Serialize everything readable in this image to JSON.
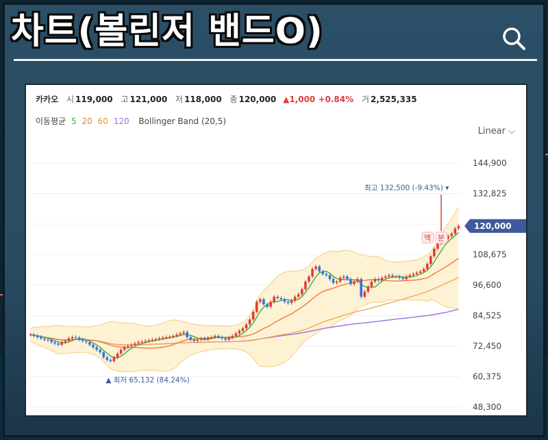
{
  "header": {
    "title": "차트(볼린저 밴드O)"
  },
  "search": {
    "icon": "search-icon"
  },
  "stock": {
    "name": "카카오",
    "open_label": "시",
    "open": "119,000",
    "high_label": "고",
    "high": "121,000",
    "low_label": "저",
    "low": "118,000",
    "close_label": "종",
    "close": "120,000",
    "change": "1,000",
    "change_pct": "+0.84%",
    "volume_label": "거",
    "volume": "2,525,335"
  },
  "indicators": {
    "ma_label": "이동평균",
    "ma_periods": [
      "5",
      "20",
      "60",
      "120"
    ],
    "bollinger": "Bollinger Band (20,5)"
  },
  "scale_toggle": "Linear",
  "colors": {
    "up": "#e03b3b",
    "down": "#3a6fd8",
    "ma5": "#3cb043",
    "ma20": "#f07a3c",
    "ma60": "#f5a75a",
    "ma120": "#9b6ee6",
    "band_fill": "#fdf2d3",
    "band_line": "#f3d58f",
    "price_tag": "#3e5a9a"
  },
  "chart_data": {
    "type": "candlestick",
    "yticks": [
      "144,900",
      "132,825",
      "120,000",
      "108,675",
      "96,600",
      "84,525",
      "72,450",
      "60,375",
      "48,300"
    ],
    "ylim": [
      48300,
      144900
    ],
    "current_price": "120,000",
    "max_annotation": "최고 132,500 (-9.43%)",
    "min_annotation": "최저 65,132 (84.24%)",
    "badges": [
      "액",
      "분"
    ],
    "close": [
      77000,
      76500,
      76000,
      75500,
      75000,
      74800,
      74000,
      73500,
      73000,
      74000,
      74500,
      75500,
      76000,
      75800,
      75000,
      74500,
      74000,
      73000,
      72000,
      71000,
      70000,
      68000,
      67000,
      66500,
      68000,
      69500,
      71000,
      72000,
      72500,
      73000,
      73500,
      74000,
      74200,
      74500,
      74800,
      75000,
      75200,
      75500,
      75800,
      76000,
      76200,
      76500,
      77000,
      77500,
      78000,
      76000,
      75000,
      74500,
      75000,
      75500,
      75200,
      75800,
      76000,
      76500,
      76000,
      75500,
      75000,
      75800,
      76500,
      77500,
      78500,
      79500,
      81000,
      83000,
      86000,
      90000,
      91000,
      89000,
      88000,
      90000,
      92000,
      91500,
      91000,
      90000,
      89500,
      90500,
      92000,
      93000,
      95000,
      98000,
      100000,
      103000,
      104000,
      102000,
      101000,
      100500,
      99000,
      97500,
      98000,
      99500,
      100000,
      99000,
      97000,
      98000,
      99000,
      92000,
      94000,
      96000,
      98000,
      99000,
      98500,
      99500,
      100000,
      100500,
      100000,
      100000,
      99500,
      99000,
      100000,
      100500,
      101000,
      101500,
      102000,
      103000,
      105000,
      108000,
      111000,
      113000,
      114000,
      115000,
      116000,
      117000,
      119000,
      120000
    ]
  }
}
